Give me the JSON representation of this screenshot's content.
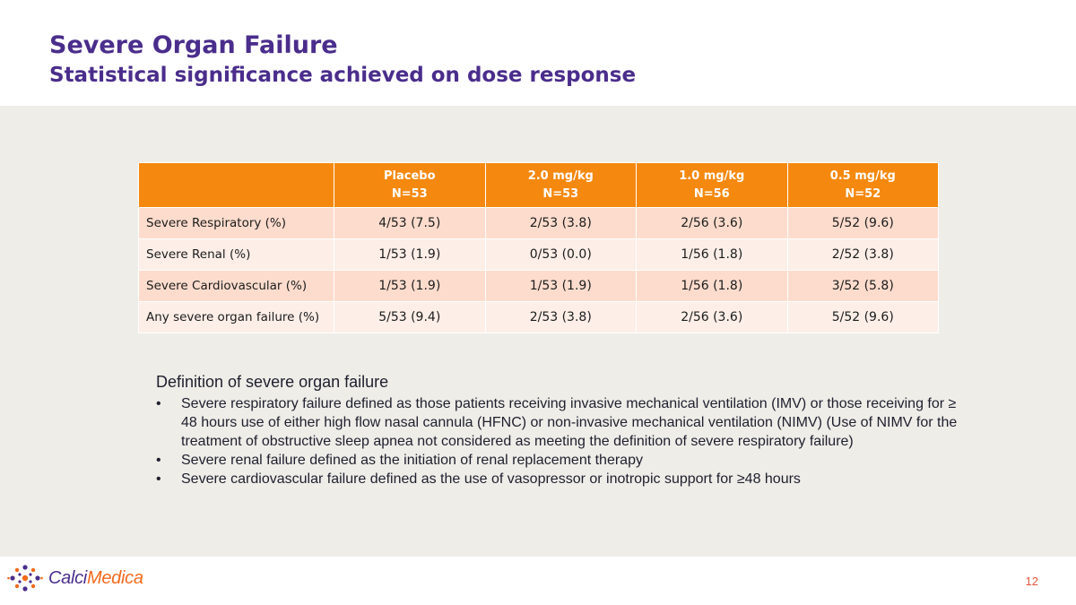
{
  "slide": {
    "title": "Severe Organ Failure",
    "subtitle": "Statistical significance achieved on dose response",
    "page_number": "12"
  },
  "table": {
    "columns": [
      {
        "name": "Placebo",
        "n": "N=53"
      },
      {
        "name": "2.0 mg/kg",
        "n": "N=53"
      },
      {
        "name": "1.0 mg/kg",
        "n": "N=56"
      },
      {
        "name": "0.5 mg/kg",
        "n": "N=52"
      }
    ],
    "rows": [
      {
        "label": "Severe Respiratory (%)",
        "values": [
          "4/53 (7.5)",
          "2/53 (3.8)",
          "2/56 (3.6)",
          "5/52 (9.6)"
        ]
      },
      {
        "label": "Severe Renal (%)",
        "values": [
          "1/53 (1.9)",
          "0/53 (0.0)",
          "1/56 (1.8)",
          "2/52 (3.8)"
        ]
      },
      {
        "label": "Severe Cardiovascular (%)",
        "values": [
          "1/53 (1.9)",
          "1/53 (1.9)",
          "1/56 (1.8)",
          "3/52 (5.8)"
        ]
      },
      {
        "label": "Any severe organ failure (%)",
        "values": [
          "5/53 (9.4)",
          "2/53 (3.8)",
          "2/56 (3.6)",
          "5/52 (9.6)"
        ]
      }
    ]
  },
  "definition": {
    "heading": "Definition of severe organ failure",
    "bullet_char": "•",
    "bullets": [
      "Severe respiratory failure defined as those patients receiving invasive mechanical ventilation (IMV) or those receiving for ≥ 48 hours use of either high flow nasal cannula (HFNC) or non-invasive mechanical ventilation (NIMV) (Use of NIMV for the treatment of obstructive sleep apnea not considered as meeting the definition of severe respiratory failure)",
      "Severe renal failure defined as the initiation of renal replacement therapy",
      "Severe cardiovascular failure defined as the use of vasopressor or inotropic support for ≥48 hours"
    ]
  },
  "logo": {
    "part1": "Calci",
    "part2": "Medica",
    "icon": "molecule-dots-icon"
  },
  "colors": {
    "title": "#4a2d8c",
    "header_bg": "#f5890f",
    "row_odd": "#fddccd",
    "row_even": "#fdeee8",
    "band": "#eeede8",
    "logo_orange": "#f26a1b"
  }
}
